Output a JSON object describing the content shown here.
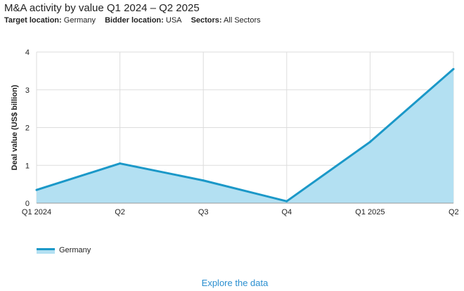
{
  "header": {
    "title": "M&A activity by value Q1 2024 – Q2 2025",
    "filters": [
      {
        "label": "Target location:",
        "value": "Germany"
      },
      {
        "label": "Bidder location:",
        "value": "USA"
      },
      {
        "label": "Sectors:",
        "value": "All Sectors"
      }
    ]
  },
  "chart_data": {
    "type": "area",
    "categories": [
      "Q1 2024",
      "Q2",
      "Q3",
      "Q4",
      "Q1 2025",
      "Q2"
    ],
    "series": [
      {
        "name": "Germany",
        "values": [
          0.35,
          1.05,
          0.6,
          0.05,
          1.62,
          3.55
        ],
        "color": "#1b98c8",
        "fill": "#b3e0f2"
      }
    ],
    "ylabel": "Deal value (US$ billion)",
    "xlabel": "",
    "ylim": [
      0,
      4
    ],
    "yticks": [
      0,
      1,
      2,
      3,
      4
    ],
    "grid": true,
    "legend_position": "bottom-left"
  },
  "footer": {
    "explore_label": "Explore the data"
  },
  "colors": {
    "line": "#1b98c8",
    "area": "#b3e0f2",
    "grid": "#dddddd",
    "link": "#2a8fd0"
  }
}
